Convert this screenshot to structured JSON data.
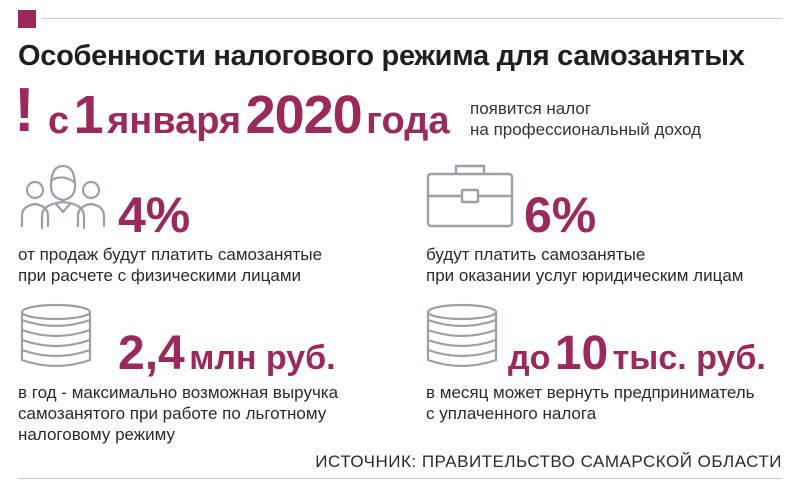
{
  "title": "Особенности налогового режима для самозанятых",
  "headline": {
    "mark": "!",
    "prefix": "с",
    "day": "1",
    "month": "января",
    "year": "2020",
    "suffix": "года",
    "note_line1": "появится налог",
    "note_line2": "на профессиональный доход"
  },
  "items": [
    {
      "icon": "people-icon",
      "value": "4%",
      "desc_line1": "от продаж будут платить самозанятые",
      "desc_line2": "при расчете с физическими лицами"
    },
    {
      "icon": "briefcase-icon",
      "value": "6%",
      "desc_line1": "будут платить самозанятые",
      "desc_line2": "при оказании услуг юридическим лицам"
    },
    {
      "icon": "coins-icon",
      "value": "2,4",
      "value_unit": "млн руб.",
      "desc_line1": "в год - максимально возможная выручка",
      "desc_line2": "самозанятого при работе по льготному",
      "desc_line3": "налоговому режиму"
    },
    {
      "icon": "coins-icon",
      "value_prefix": "до",
      "value": "10",
      "value_unit": "тыс. руб.",
      "desc_line1": "в месяц может вернуть предприниматель",
      "desc_line2": "с уплаченного налога"
    }
  ],
  "source": "ИСТОЧНИК: ПРАВИТЕЛЬСТВО САМАРСКОЙ ОБЛАСТИ",
  "colors": {
    "accent": "#9b2a5c",
    "icon_gray": "#9aa0a8",
    "text": "#1f1f1f"
  }
}
